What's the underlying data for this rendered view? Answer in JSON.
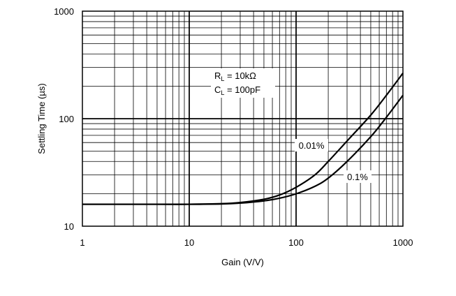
{
  "chart_data": {
    "type": "line",
    "xlabel": "Gain (V/V)",
    "ylabel": "Settling Time (µs)",
    "xscale": "log",
    "yscale": "log",
    "xlim": [
      1,
      1000
    ],
    "ylim": [
      10,
      1000
    ],
    "grid": true,
    "x_ticks": [
      {
        "value": 1,
        "label": "1"
      },
      {
        "value": 10,
        "label": "10"
      },
      {
        "value": 100,
        "label": "100"
      },
      {
        "value": 1000,
        "label": "1000"
      }
    ],
    "y_ticks": [
      {
        "value": 10,
        "label": "10"
      },
      {
        "value": 100,
        "label": "100"
      },
      {
        "value": 1000,
        "label": "1000"
      }
    ],
    "annotation": {
      "line1_main": "R",
      "line1_sub": "L",
      "line1_rest": " = 10kΩ",
      "line2_main": "C",
      "line2_sub": "L",
      "line2_rest": " = 100pF"
    },
    "series": [
      {
        "name": "0.01%",
        "x": [
          1,
          2,
          5,
          10,
          20,
          30,
          50,
          70,
          100,
          150,
          200,
          300,
          500,
          700,
          1000
        ],
        "y": [
          16,
          16,
          16,
          16,
          16.2,
          16.6,
          17.8,
          19.5,
          23,
          30,
          40,
          62,
          108,
          165,
          265
        ]
      },
      {
        "name": "0.1%",
        "x": [
          1,
          2,
          5,
          10,
          20,
          30,
          50,
          70,
          100,
          150,
          200,
          300,
          500,
          700,
          1000
        ],
        "y": [
          16,
          16,
          16,
          16,
          16.1,
          16.4,
          17.2,
          18.2,
          20,
          23.5,
          28,
          40,
          68,
          103,
          165
        ]
      }
    ]
  }
}
